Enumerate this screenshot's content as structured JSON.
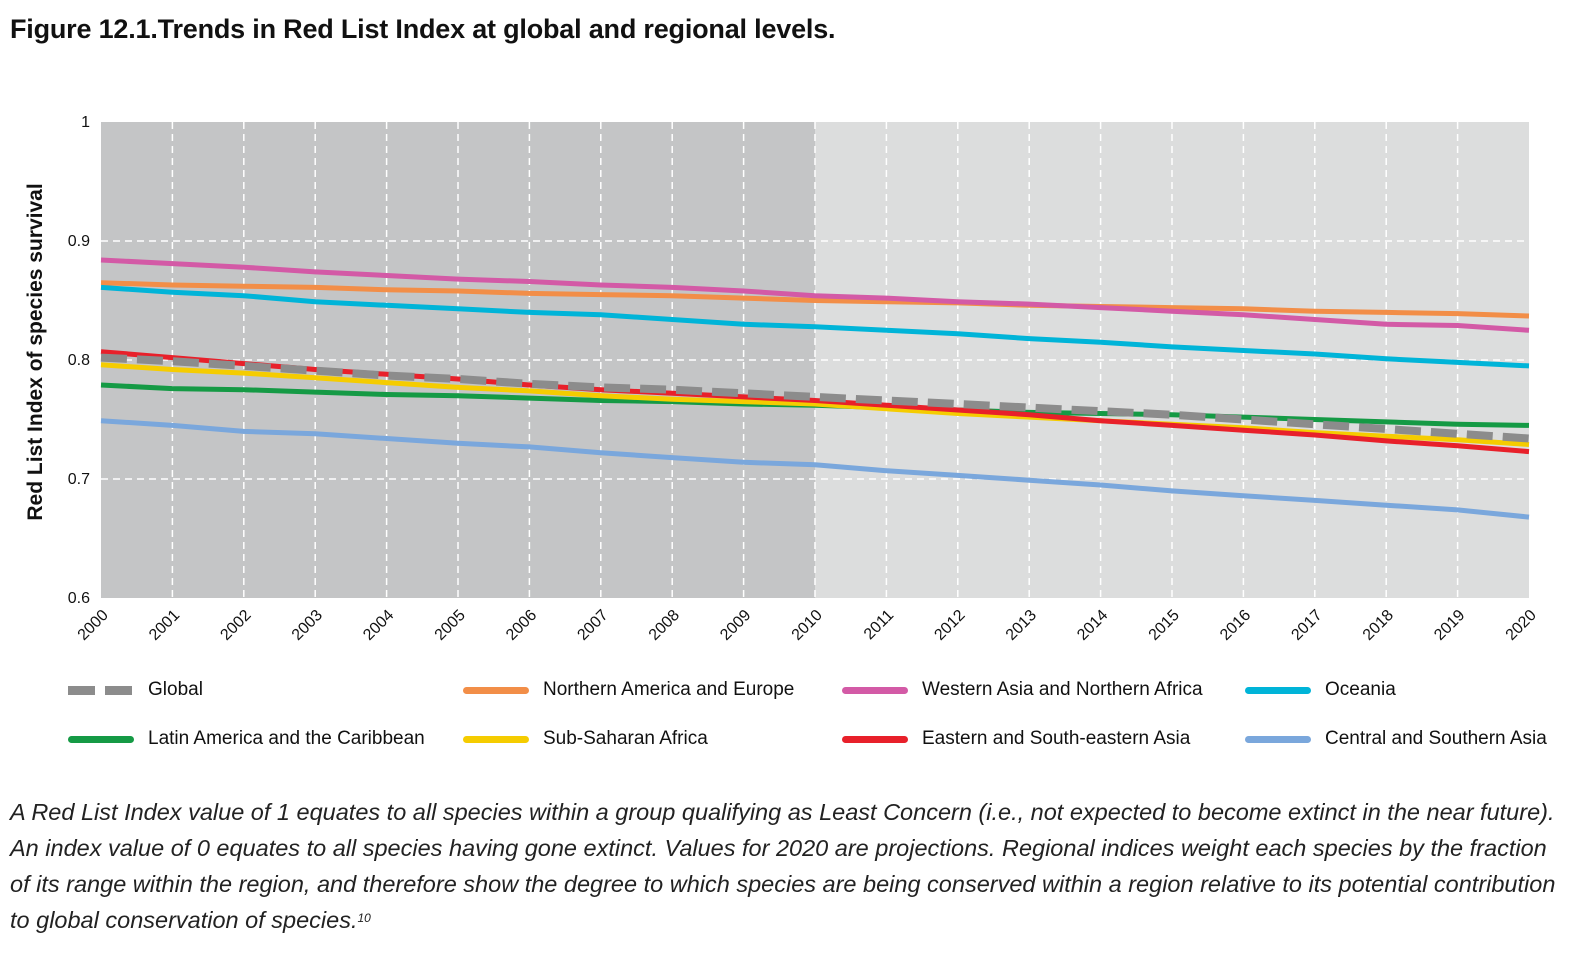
{
  "figure": {
    "title": "Figure 12.1.Trends in Red List Index at global and regional levels.",
    "caption": "A Red List Index value of 1 equates to all species within a group qualifying as Least Concern (i.e., not expected to become extinct in the near future). An index value of 0 equates to all species having gone extinct. Values for 2020 are projections. Regional indices weight each species by the fraction of its range within the region, and therefore show the degree to which species are being conserved within a region relative to its potential contribution to global conservation of species.",
    "caption_ref": "10"
  },
  "chart_data": {
    "type": "line",
    "title": "Trends in Red List Index at global and regional levels",
    "xlabel": "",
    "ylabel": "Red List Index of species survival",
    "ylim": [
      0.6,
      1
    ],
    "yticks": [
      0.6,
      0.7,
      0.8,
      0.9,
      1
    ],
    "ytick_labels": [
      "0.6",
      "0.7",
      "0.8",
      "0.9",
      "1"
    ],
    "x": [
      "2000",
      "2001",
      "2002",
      "2003",
      "2004",
      "2005",
      "2006",
      "2007",
      "2008",
      "2009",
      "2010",
      "2011",
      "2012",
      "2013",
      "2014",
      "2015",
      "2016",
      "2017",
      "2018",
      "2019",
      "2020"
    ],
    "shaded_period": [
      "2000",
      "2010"
    ],
    "grid": true,
    "series": [
      {
        "name": "Northern America and Europe",
        "color": "#f28e48",
        "dash": false,
        "values": [
          0.865,
          0.863,
          0.862,
          0.861,
          0.859,
          0.858,
          0.856,
          0.855,
          0.854,
          0.852,
          0.85,
          0.849,
          0.848,
          0.846,
          0.845,
          0.844,
          0.843,
          0.841,
          0.84,
          0.839,
          0.837
        ]
      },
      {
        "name": "Western Asia and Northern Africa",
        "color": "#d35aa6",
        "dash": false,
        "values": [
          0.884,
          0.881,
          0.878,
          0.874,
          0.871,
          0.868,
          0.866,
          0.863,
          0.861,
          0.858,
          0.854,
          0.852,
          0.849,
          0.847,
          0.844,
          0.841,
          0.838,
          0.834,
          0.83,
          0.829,
          0.825
        ]
      },
      {
        "name": "Oceania",
        "color": "#00b4d8",
        "dash": false,
        "values": [
          0.861,
          0.857,
          0.854,
          0.849,
          0.846,
          0.843,
          0.84,
          0.838,
          0.834,
          0.83,
          0.828,
          0.825,
          0.822,
          0.818,
          0.815,
          0.811,
          0.808,
          0.805,
          0.801,
          0.798,
          0.795
        ]
      },
      {
        "name": "Central and Southern Asia",
        "color": "#7aa7dc",
        "dash": false,
        "values": [
          0.749,
          0.745,
          0.74,
          0.738,
          0.734,
          0.73,
          0.727,
          0.722,
          0.718,
          0.714,
          0.712,
          0.707,
          0.703,
          0.699,
          0.695,
          0.69,
          0.686,
          0.682,
          0.678,
          0.674,
          0.668
        ]
      },
      {
        "name": "Latin America and the Caribbean",
        "color": "#159a45",
        "dash": false,
        "values": [
          0.779,
          0.776,
          0.775,
          0.773,
          0.771,
          0.77,
          0.768,
          0.766,
          0.765,
          0.763,
          0.762,
          0.76,
          0.758,
          0.756,
          0.755,
          0.754,
          0.752,
          0.75,
          0.748,
          0.746,
          0.745
        ]
      },
      {
        "name": "Sub-Saharan Africa",
        "color": "#f5cc00",
        "dash": false,
        "values": [
          0.796,
          0.792,
          0.789,
          0.785,
          0.781,
          0.777,
          0.774,
          0.77,
          0.767,
          0.765,
          0.763,
          0.759,
          0.755,
          0.752,
          0.749,
          0.746,
          0.743,
          0.739,
          0.736,
          0.733,
          0.729
        ]
      },
      {
        "name": "Eastern and South-eastern Asia",
        "color": "#e8202a",
        "dash": false,
        "values": [
          0.807,
          0.802,
          0.797,
          0.792,
          0.788,
          0.784,
          0.779,
          0.775,
          0.772,
          0.769,
          0.766,
          0.762,
          0.758,
          0.754,
          0.749,
          0.745,
          0.741,
          0.737,
          0.732,
          0.728,
          0.723
        ]
      },
      {
        "name": "Global",
        "color": "#8c8c8c",
        "dash": true,
        "values": [
          0.802,
          0.799,
          0.795,
          0.791,
          0.787,
          0.784,
          0.78,
          0.777,
          0.775,
          0.772,
          0.769,
          0.766,
          0.763,
          0.76,
          0.757,
          0.754,
          0.75,
          0.746,
          0.742,
          0.738,
          0.734
        ]
      }
    ],
    "legend": {
      "row1": [
        "Global",
        "Northern America and Europe",
        "Western Asia and Northern Africa",
        "Oceania"
      ],
      "row2": [
        "Latin America and the Caribbean",
        "Sub-Saharan Africa",
        "Eastern and South-eastern Asia",
        "Central and Southern Asia"
      ]
    }
  }
}
